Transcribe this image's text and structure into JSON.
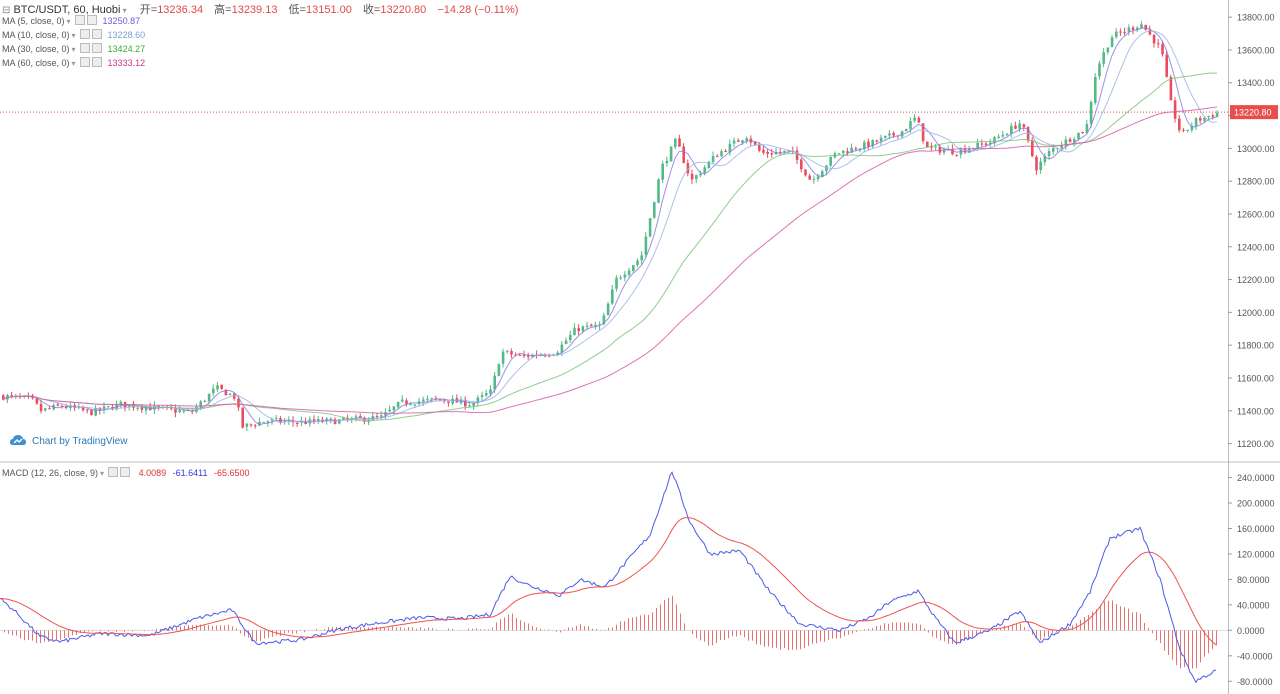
{
  "header": {
    "symbol": "BTC/USDT, 60, Huobi",
    "open_label": "开=",
    "open": "13236.34",
    "high_label": "高=",
    "high": "13239.13",
    "low_label": "低=",
    "low": "13151.00",
    "close_label": "收=",
    "close": "13220.80",
    "change": "−14.28 (−0.11%)"
  },
  "indicators": [
    {
      "label": "MA (5, close, 0)",
      "value": "13250.87",
      "color": "#6b5fd6"
    },
    {
      "label": "MA (10, close, 0)",
      "value": "13228.60",
      "color": "#7d9fd6"
    },
    {
      "label": "MA (30, close, 0)",
      "value": "13424.27",
      "color": "#3aa83a"
    },
    {
      "label": "MA (60, close, 0)",
      "value": "13333.12",
      "color": "#c43a8e"
    }
  ],
  "macd": {
    "label": "MACD (12, 26, close, 9)",
    "v1": "4.0089",
    "v1_color": "#e03131",
    "v2": "-61.6411",
    "v2_color": "#2b3bd8",
    "v3": "-65.6500",
    "v3_color": "#e03131"
  },
  "watermark": "Chart by TradingView",
  "chart_data": {
    "type": "candlestick",
    "price_axis": {
      "ticks": [
        "13800.00",
        "13600.00",
        "13400.00",
        "13200.00",
        "13000.00",
        "12800.00",
        "12600.00",
        "12400.00",
        "12200.00",
        "12000.00",
        "11800.00",
        "11600.00",
        "11400.00",
        "11200.00"
      ],
      "min": 11100,
      "max": 13880,
      "last_price_label": "13220.80",
      "last_price": 13220.8
    },
    "macd_axis": {
      "ticks": [
        "240.0000",
        "200.0000",
        "160.0000",
        "120.0000",
        "80.0000",
        "40.0000",
        "0.0000",
        "-40.0000",
        "-80.0000"
      ],
      "min": -100,
      "max": 255
    },
    "price_anchors": [
      [
        0,
        11490
      ],
      [
        30,
        11470
      ],
      [
        40,
        11400
      ],
      [
        60,
        11430
      ],
      [
        90,
        11390
      ],
      [
        120,
        11440
      ],
      [
        160,
        11410
      ],
      [
        190,
        11390
      ],
      [
        215,
        11540
      ],
      [
        235,
        11480
      ],
      [
        240,
        11300
      ],
      [
        265,
        11340
      ],
      [
        300,
        11330
      ],
      [
        340,
        11340
      ],
      [
        380,
        11360
      ],
      [
        400,
        11450
      ],
      [
        440,
        11470
      ],
      [
        470,
        11440
      ],
      [
        490,
        11520
      ],
      [
        500,
        11760
      ],
      [
        520,
        11730
      ],
      [
        555,
        11760
      ],
      [
        575,
        11900
      ],
      [
        600,
        11920
      ],
      [
        615,
        12200
      ],
      [
        640,
        12340
      ],
      [
        660,
        12880
      ],
      [
        675,
        13050
      ],
      [
        690,
        12800
      ],
      [
        715,
        12960
      ],
      [
        745,
        13080
      ],
      [
        760,
        12970
      ],
      [
        790,
        12980
      ],
      [
        810,
        12800
      ],
      [
        835,
        12970
      ],
      [
        870,
        13030
      ],
      [
        900,
        13100
      ],
      [
        915,
        13190
      ],
      [
        925,
        13000
      ],
      [
        955,
        12980
      ],
      [
        990,
        13040
      ],
      [
        1020,
        13160
      ],
      [
        1035,
        12880
      ],
      [
        1050,
        12990
      ],
      [
        1085,
        13120
      ],
      [
        1095,
        13480
      ],
      [
        1110,
        13680
      ],
      [
        1140,
        13760
      ],
      [
        1160,
        13600
      ],
      [
        1170,
        13260
      ],
      [
        1180,
        13080
      ],
      [
        1195,
        13170
      ],
      [
        1218,
        13220
      ]
    ],
    "macd_anchors": [
      [
        0,
        50
      ],
      [
        15,
        30
      ],
      [
        40,
        -10
      ],
      [
        60,
        -18
      ],
      [
        100,
        -5
      ],
      [
        150,
        -8
      ],
      [
        200,
        20
      ],
      [
        232,
        32
      ],
      [
        255,
        -20
      ],
      [
        300,
        -15
      ],
      [
        340,
        2
      ],
      [
        380,
        12
      ],
      [
        420,
        20
      ],
      [
        460,
        18
      ],
      [
        490,
        25
      ],
      [
        510,
        85
      ],
      [
        530,
        70
      ],
      [
        560,
        55
      ],
      [
        580,
        80
      ],
      [
        605,
        68
      ],
      [
        625,
        105
      ],
      [
        650,
        150
      ],
      [
        672,
        250
      ],
      [
        690,
        170
      ],
      [
        710,
        120
      ],
      [
        740,
        125
      ],
      [
        770,
        60
      ],
      [
        800,
        10
      ],
      [
        840,
        0
      ],
      [
        870,
        20
      ],
      [
        890,
        45
      ],
      [
        918,
        62
      ],
      [
        935,
        20
      ],
      [
        955,
        -20
      ],
      [
        990,
        0
      ],
      [
        1020,
        30
      ],
      [
        1040,
        -20
      ],
      [
        1070,
        10
      ],
      [
        1090,
        60
      ],
      [
        1110,
        145
      ],
      [
        1140,
        160
      ],
      [
        1160,
        80
      ],
      [
        1180,
        -30
      ],
      [
        1195,
        -80
      ],
      [
        1218,
        -62
      ]
    ]
  }
}
